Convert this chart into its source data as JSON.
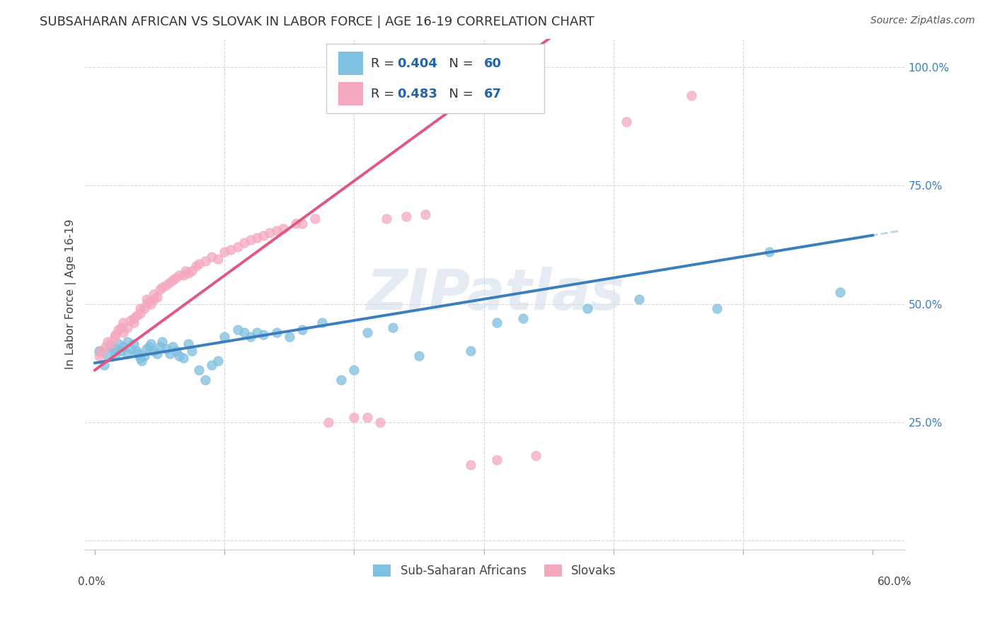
{
  "title": "SUBSAHARAN AFRICAN VS SLOVAK IN LABOR FORCE | AGE 16-19 CORRELATION CHART",
  "source": "Source: ZipAtlas.com",
  "ylabel": "In Labor Force | Age 16-19",
  "legend1_R": "0.404",
  "legend1_N": "60",
  "legend2_R": "0.483",
  "legend2_N": "67",
  "blue_color": "#7fbfdf",
  "pink_color": "#f4a8be",
  "trend_blue": "#3a7ec0",
  "trend_pink": "#e05880",
  "trend_dashed_color": "#c0d4e8",
  "background": "#ffffff",
  "watermark": "ZIPatlas",
  "grid_color": "#d8d8d8",
  "text_color": "#444444",
  "axis_label_color": "#3a7ec0",
  "xlim": [
    0.0,
    0.6
  ],
  "ylim": [
    0.0,
    1.0
  ],
  "blue_x": [
    0.003,
    0.007,
    0.01,
    0.012,
    0.015,
    0.016,
    0.018,
    0.02,
    0.022,
    0.025,
    0.025,
    0.028,
    0.03,
    0.032,
    0.033,
    0.035,
    0.036,
    0.038,
    0.04,
    0.042,
    0.043,
    0.045,
    0.048,
    0.05,
    0.052,
    0.055,
    0.058,
    0.06,
    0.063,
    0.065,
    0.068,
    0.072,
    0.075,
    0.08,
    0.085,
    0.09,
    0.095,
    0.1,
    0.11,
    0.115,
    0.12,
    0.125,
    0.13,
    0.14,
    0.15,
    0.16,
    0.175,
    0.19,
    0.2,
    0.21,
    0.23,
    0.25,
    0.29,
    0.31,
    0.33,
    0.38,
    0.42,
    0.48,
    0.52,
    0.575
  ],
  "blue_y": [
    0.4,
    0.37,
    0.39,
    0.41,
    0.405,
    0.395,
    0.415,
    0.4,
    0.41,
    0.42,
    0.395,
    0.405,
    0.415,
    0.4,
    0.395,
    0.385,
    0.38,
    0.39,
    0.405,
    0.41,
    0.415,
    0.4,
    0.395,
    0.41,
    0.42,
    0.405,
    0.395,
    0.41,
    0.4,
    0.39,
    0.385,
    0.415,
    0.4,
    0.36,
    0.34,
    0.37,
    0.38,
    0.43,
    0.445,
    0.44,
    0.43,
    0.44,
    0.435,
    0.44,
    0.43,
    0.445,
    0.46,
    0.34,
    0.36,
    0.44,
    0.45,
    0.39,
    0.4,
    0.46,
    0.47,
    0.49,
    0.51,
    0.49,
    0.61,
    0.525
  ],
  "pink_x": [
    0.003,
    0.005,
    0.008,
    0.01,
    0.012,
    0.015,
    0.016,
    0.018,
    0.02,
    0.022,
    0.022,
    0.025,
    0.027,
    0.03,
    0.03,
    0.032,
    0.035,
    0.035,
    0.038,
    0.04,
    0.04,
    0.042,
    0.043,
    0.045,
    0.045,
    0.048,
    0.05,
    0.052,
    0.055,
    0.058,
    0.06,
    0.062,
    0.065,
    0.068,
    0.07,
    0.072,
    0.075,
    0.078,
    0.08,
    0.085,
    0.09,
    0.095,
    0.1,
    0.105,
    0.11,
    0.115,
    0.12,
    0.125,
    0.13,
    0.135,
    0.14,
    0.145,
    0.155,
    0.16,
    0.17,
    0.18,
    0.2,
    0.21,
    0.22,
    0.225,
    0.24,
    0.255,
    0.29,
    0.31,
    0.34,
    0.41,
    0.46
  ],
  "pink_y": [
    0.39,
    0.4,
    0.41,
    0.42,
    0.415,
    0.43,
    0.435,
    0.445,
    0.45,
    0.44,
    0.46,
    0.45,
    0.465,
    0.46,
    0.47,
    0.475,
    0.48,
    0.49,
    0.49,
    0.5,
    0.51,
    0.505,
    0.5,
    0.51,
    0.52,
    0.515,
    0.53,
    0.535,
    0.54,
    0.545,
    0.55,
    0.555,
    0.56,
    0.56,
    0.57,
    0.565,
    0.57,
    0.58,
    0.585,
    0.59,
    0.6,
    0.595,
    0.61,
    0.615,
    0.62,
    0.63,
    0.635,
    0.64,
    0.645,
    0.65,
    0.655,
    0.66,
    0.67,
    0.67,
    0.68,
    0.25,
    0.26,
    0.26,
    0.25,
    0.68,
    0.685,
    0.69,
    0.16,
    0.17,
    0.18,
    0.885,
    0.94
  ]
}
